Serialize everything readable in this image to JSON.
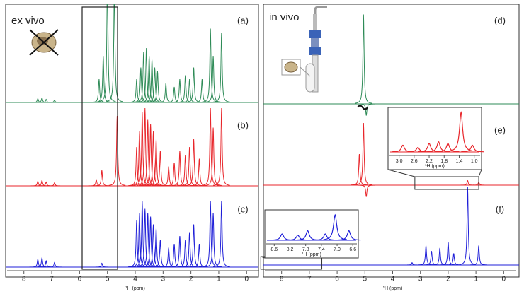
{
  "chart_data": [
    {
      "type": "spectrum",
      "title": "ex vivo",
      "xlabel": "¹H (ppm)",
      "xlim": [
        8.4,
        -0.4
      ],
      "xticks": [
        8,
        7,
        6,
        5,
        4,
        3,
        2,
        1,
        0
      ],
      "series": [
        {
          "name": "(a)",
          "color": "#2e8b57",
          "x": [
            7.5,
            7.35,
            7.2,
            6.9,
            5.3,
            5.15,
            5.0,
            4.75,
            3.95,
            3.8,
            3.7,
            3.6,
            3.5,
            3.4,
            3.3,
            3.2,
            2.9,
            2.6,
            2.4,
            2.2,
            2.05,
            1.9,
            1.6,
            1.3,
            1.2,
            0.9
          ],
          "values": [
            5,
            6,
            4,
            3,
            30,
            60,
            160,
            150,
            30,
            45,
            65,
            70,
            60,
            55,
            45,
            40,
            25,
            20,
            30,
            35,
            30,
            45,
            30,
            95,
            60,
            90
          ]
        },
        {
          "name": "(b)",
          "color": "#e8262b",
          "x": [
            7.5,
            7.35,
            7.2,
            6.9,
            5.4,
            5.2,
            4.65,
            3.95,
            3.85,
            3.75,
            3.65,
            3.55,
            3.45,
            3.35,
            3.25,
            3.1,
            2.8,
            2.6,
            2.4,
            2.2,
            2.05,
            1.9,
            1.7,
            1.3,
            1.2,
            0.9
          ],
          "values": [
            6,
            7,
            5,
            4,
            8,
            20,
            90,
            50,
            70,
            95,
            100,
            85,
            80,
            70,
            60,
            45,
            25,
            30,
            45,
            40,
            50,
            60,
            35,
            100,
            75,
            100
          ]
        },
        {
          "name": "(c)",
          "color": "#1f1fd8",
          "x": [
            7.5,
            7.35,
            7.2,
            6.9,
            5.2,
            3.95,
            3.85,
            3.75,
            3.65,
            3.55,
            3.45,
            3.35,
            3.25,
            3.1,
            2.8,
            2.6,
            2.4,
            2.2,
            2.05,
            1.9,
            1.7,
            1.3,
            1.2,
            0.9
          ],
          "values": [
            10,
            12,
            8,
            6,
            5,
            60,
            70,
            85,
            75,
            70,
            65,
            55,
            50,
            35,
            25,
            30,
            40,
            35,
            45,
            55,
            30,
            85,
            70,
            85
          ]
        }
      ]
    },
    {
      "type": "spectrum",
      "title": "in vivo",
      "xlabel": "¹H (ppm)",
      "xlim": [
        8.4,
        -0.4
      ],
      "xticks": [
        8,
        7,
        6,
        5,
        4,
        3,
        2,
        1,
        0
      ],
      "series": [
        {
          "name": "(d)",
          "color": "#2e8b57",
          "x": [
            5.05,
            4.95
          ],
          "values": [
            115,
            -15
          ]
        },
        {
          "name": "(e)",
          "color": "#e8262b",
          "x": [
            5.2,
            5.05,
            4.95,
            1.3,
            0.9
          ],
          "values": [
            40,
            80,
            -15,
            6,
            4
          ]
        },
        {
          "name": "(f)",
          "color": "#1f1fd8",
          "x": [
            3.3,
            2.8,
            2.6,
            2.3,
            2.0,
            1.8,
            1.3,
            0.9
          ],
          "values": [
            3,
            25,
            18,
            22,
            30,
            15,
            100,
            25
          ]
        }
      ],
      "insets": [
        {
          "xlabel": "¹H (ppm)",
          "xlim": [
            3.2,
            0.9
          ],
          "xticks": [
            {
              "value": 3,
              "label": "3.0"
            },
            2.6,
            2.2,
            1.8,
            1.4,
            {
              "value": 1,
              "label": "1.0"
            }
          ],
          "color": "#e8262b",
          "x": [
            2.9,
            2.5,
            2.2,
            1.95,
            1.7,
            1.35,
            1.05
          ],
          "values": [
            12,
            8,
            15,
            18,
            15,
            70,
            12
          ]
        },
        {
          "xlabel": "¹H (ppm)",
          "xlim": [
            8.75,
            6.55
          ],
          "xticks": [
            8.6,
            8.2,
            7.8,
            7.4,
            {
              "value": 7,
              "label": "7.0"
            },
            6.6
          ],
          "color": "#1f1fd8",
          "x": [
            8.4,
            8.0,
            7.75,
            7.3,
            7.05,
            6.7
          ],
          "values": [
            10,
            8,
            15,
            10,
            40,
            15
          ]
        }
      ]
    }
  ]
}
